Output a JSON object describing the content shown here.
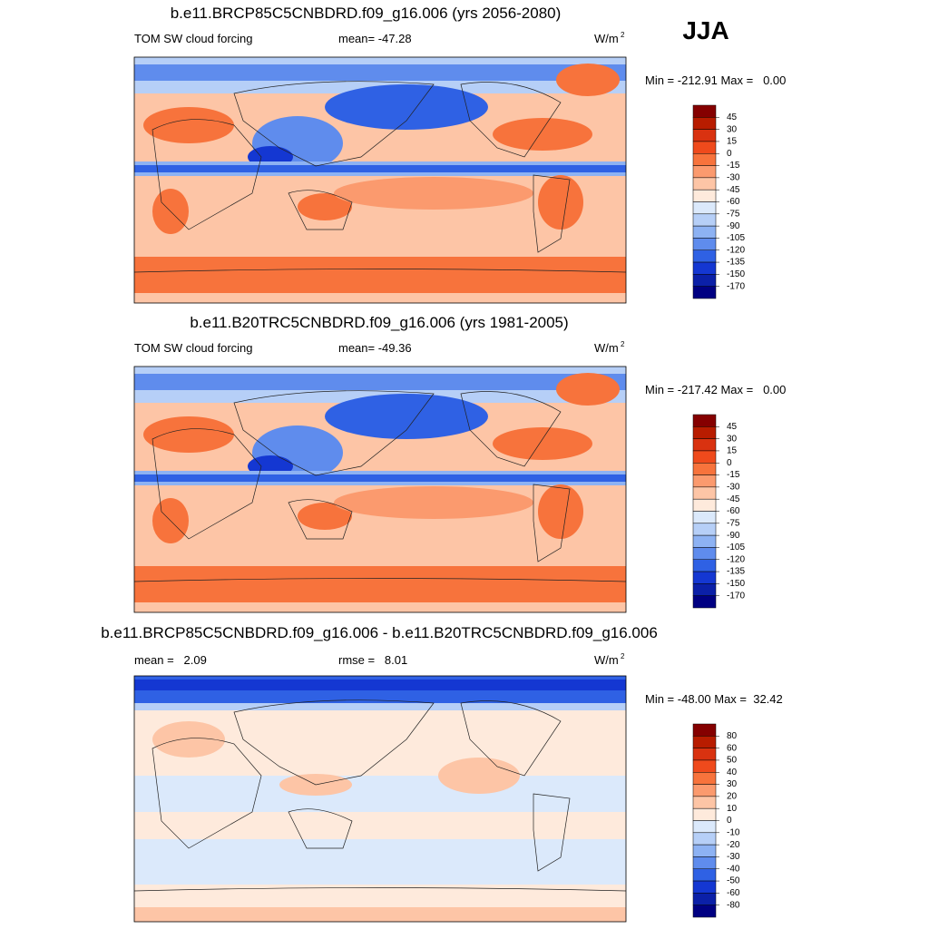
{
  "header": {
    "season": "JJA"
  },
  "panels": [
    {
      "title": "b.e11.BRCP85C5CNBDRD.f09_g16.006 (yrs 2056-2080)",
      "left_label": "TOM SW cloud forcing",
      "center_label": "mean= -47.28",
      "units": "W/m",
      "units_exponent": "2",
      "min_max": "Min = -212.91 Max =   0.00",
      "colorbar": {
        "levels": [
          45,
          30,
          15,
          0,
          -15,
          -30,
          -45,
          -60,
          -75,
          -90,
          -105,
          -120,
          -135,
          -150,
          -170
        ],
        "colors": [
          "#850000",
          "#b81c00",
          "#d93210",
          "#ef4a1c",
          "#f7733c",
          "#fb9a6e",
          "#fdc5a6",
          "#feeadc",
          "#dbe9fb",
          "#b6cff7",
          "#8db2f3",
          "#5f8ced",
          "#2f61e4",
          "#1437d2",
          "#0b20a8",
          "#000082"
        ]
      }
    },
    {
      "title": "b.e11.B20TRC5CNBDRD.f09_g16.006 (yrs 1981-2005)",
      "left_label": "TOM SW cloud forcing",
      "center_label": "mean= -49.36",
      "units": "W/m",
      "units_exponent": "2",
      "min_max": "Min = -217.42 Max =   0.00",
      "colorbar": {
        "levels": [
          45,
          30,
          15,
          0,
          -15,
          -30,
          -45,
          -60,
          -75,
          -90,
          -105,
          -120,
          -135,
          -150,
          -170
        ],
        "colors": [
          "#850000",
          "#b81c00",
          "#d93210",
          "#ef4a1c",
          "#f7733c",
          "#fb9a6e",
          "#fdc5a6",
          "#feeadc",
          "#dbe9fb",
          "#b6cff7",
          "#8db2f3",
          "#5f8ced",
          "#2f61e4",
          "#1437d2",
          "#0b20a8",
          "#000082"
        ]
      }
    },
    {
      "title": "b.e11.BRCP85C5CNBDRD.f09_g16.006 - b.e11.B20TRC5CNBDRD.f09_g16.006",
      "left_label": "mean =   2.09",
      "center_label": "rmse =   8.01",
      "units": "W/m",
      "units_exponent": "2",
      "min_max": "Min = -48.00 Max =  32.42",
      "colorbar": {
        "levels": [
          80,
          60,
          50,
          40,
          30,
          20,
          10,
          0,
          -10,
          -20,
          -30,
          -40,
          -50,
          -60,
          -80
        ],
        "colors": [
          "#850000",
          "#b81c00",
          "#d93210",
          "#ef4a1c",
          "#f7733c",
          "#fb9a6e",
          "#fdc5a6",
          "#feeadc",
          "#dbe9fb",
          "#b6cff7",
          "#8db2f3",
          "#5f8ced",
          "#2f61e4",
          "#1437d2",
          "#0b20a8",
          "#000082"
        ]
      }
    }
  ]
}
